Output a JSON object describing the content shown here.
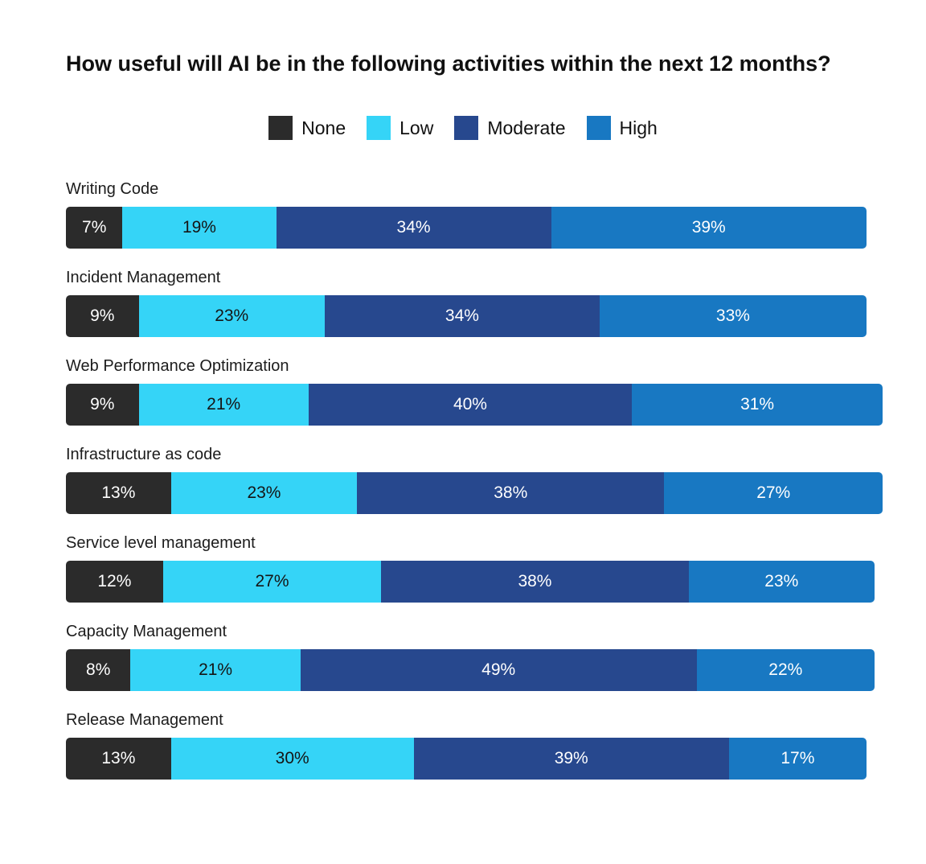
{
  "title": "How useful will AI be in the following activities within the next 12 months?",
  "colors": {
    "none": "#2b2b2b",
    "low": "#35d4f7",
    "moderate": "#27488e",
    "high": "#1878c2",
    "text_on_dark_segment": "#ffffff",
    "text_on_light_segment": "#151515",
    "title_text": "#101010",
    "category_label_text": "#1c1c1c",
    "background": "#ffffff"
  },
  "legend": {
    "items": [
      {
        "label": "None",
        "color": "#2b2b2b",
        "value_text_color": "#ffffff"
      },
      {
        "label": "Low",
        "color": "#35d4f7",
        "value_text_color": "#151515"
      },
      {
        "label": "Moderate",
        "color": "#27488e",
        "value_text_color": "#ffffff"
      },
      {
        "label": "High",
        "color": "#1878c2",
        "value_text_color": "#ffffff"
      }
    ]
  },
  "chart_data": {
    "type": "bar",
    "orientation": "horizontal",
    "stacked": true,
    "unit": "%",
    "title": "How useful will AI be in the following activities within the next 12 months?",
    "legend_position": "top-center",
    "xlim": [
      0,
      100
    ],
    "grid": false,
    "value_label_format": "{value}%",
    "categories": [
      "Writing Code",
      "Incident Management",
      "Web Performance Optimization",
      "Infrastructure as code",
      "Service level management",
      "Capacity Management",
      "Release Management"
    ],
    "series": [
      {
        "name": "None",
        "values": [
          7,
          9,
          9,
          13,
          12,
          8,
          13
        ]
      },
      {
        "name": "Low",
        "values": [
          19,
          23,
          21,
          23,
          27,
          21,
          30
        ]
      },
      {
        "name": "Moderate",
        "values": [
          34,
          34,
          40,
          38,
          38,
          49,
          39
        ]
      },
      {
        "name": "High",
        "values": [
          39,
          33,
          31,
          27,
          23,
          22,
          17
        ]
      }
    ]
  }
}
